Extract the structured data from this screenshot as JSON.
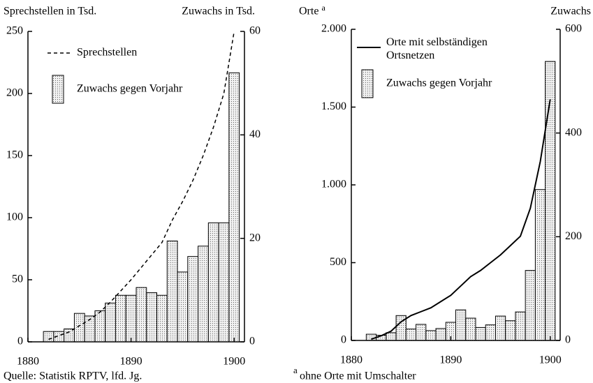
{
  "source": "Quelle: Statistik RPTV, lfd. Jg.",
  "chart_data": [
    {
      "type": "bar",
      "y_label": "Sprechstellen in Tsd.",
      "y2_label": "Zuwachs in Tsd.",
      "x": [
        1882,
        1883,
        1884,
        1885,
        1886,
        1887,
        1888,
        1889,
        1890,
        1891,
        1892,
        1893,
        1894,
        1895,
        1896,
        1897,
        1898,
        1899,
        1900
      ],
      "xlim": [
        1880,
        1901
      ],
      "xticks": [
        1880,
        1890,
        1900
      ],
      "ylim": [
        0,
        250
      ],
      "yticks": [
        0,
        50,
        100,
        150,
        200,
        250
      ],
      "y2lim": [
        0,
        60
      ],
      "y2ticks": [
        0,
        20,
        40,
        60
      ],
      "legend": "upper left",
      "series": [
        {
          "name": "Sprechstellen",
          "type": "line",
          "dashed": true,
          "color": "#000000",
          "axis": "y",
          "values": [
            2,
            5,
            8,
            13,
            18,
            24,
            32,
            41,
            50,
            60,
            70,
            80,
            98,
            113,
            130,
            150,
            173,
            200,
            250
          ]
        },
        {
          "name": "Zuwachs gegen Vorjahr",
          "type": "bar",
          "color": "#000000",
          "axis": "y2",
          "values": [
            2,
            2,
            2.5,
            5.5,
            5,
            6,
            7.5,
            9,
            9,
            10.5,
            9.5,
            9,
            19.5,
            13.5,
            16.5,
            18.5,
            23,
            23,
            52
          ]
        }
      ]
    },
    {
      "type": "bar",
      "y_label": "Orte",
      "y_label_marker": "a",
      "y2_label": "Zuwachs",
      "footnote_marker": "a",
      "footnote": "ohne Orte mit Umschalter",
      "x": [
        1882,
        1883,
        1884,
        1885,
        1886,
        1887,
        1888,
        1889,
        1890,
        1891,
        1892,
        1893,
        1894,
        1895,
        1896,
        1897,
        1898,
        1899,
        1900
      ],
      "xlim": [
        1880,
        1901
      ],
      "xticks": [
        1880,
        1890,
        1900
      ],
      "ylim": [
        0,
        2000
      ],
      "yticks": [
        0,
        500,
        {
          "value": 1000,
          "label": "1.000"
        },
        {
          "value": 1500,
          "label": "1.500"
        },
        {
          "value": 2000,
          "label": "2.000"
        }
      ],
      "y2lim": [
        0,
        600
      ],
      "y2ticks": [
        0,
        200,
        400,
        600
      ],
      "legend": "upper left",
      "series": [
        {
          "name": "Orte mit selbständigen Ortsnetzen",
          "type": "line",
          "dashed": false,
          "color": "#000000",
          "axis": "y",
          "values": [
            8,
            30,
            60,
            120,
            160,
            185,
            210,
            250,
            290,
            350,
            410,
            450,
            500,
            550,
            610,
            670,
            850,
            1150,
            1550
          ]
        },
        {
          "name": "Zuwachs gegen Vorjahr",
          "type": "bar",
          "color": "#000000",
          "axis": "y2",
          "values": [
            12,
            10,
            15,
            48,
            22,
            31,
            19,
            23,
            35,
            59,
            43,
            25,
            30,
            47,
            38,
            55,
            135,
            291,
            538
          ]
        }
      ]
    }
  ]
}
